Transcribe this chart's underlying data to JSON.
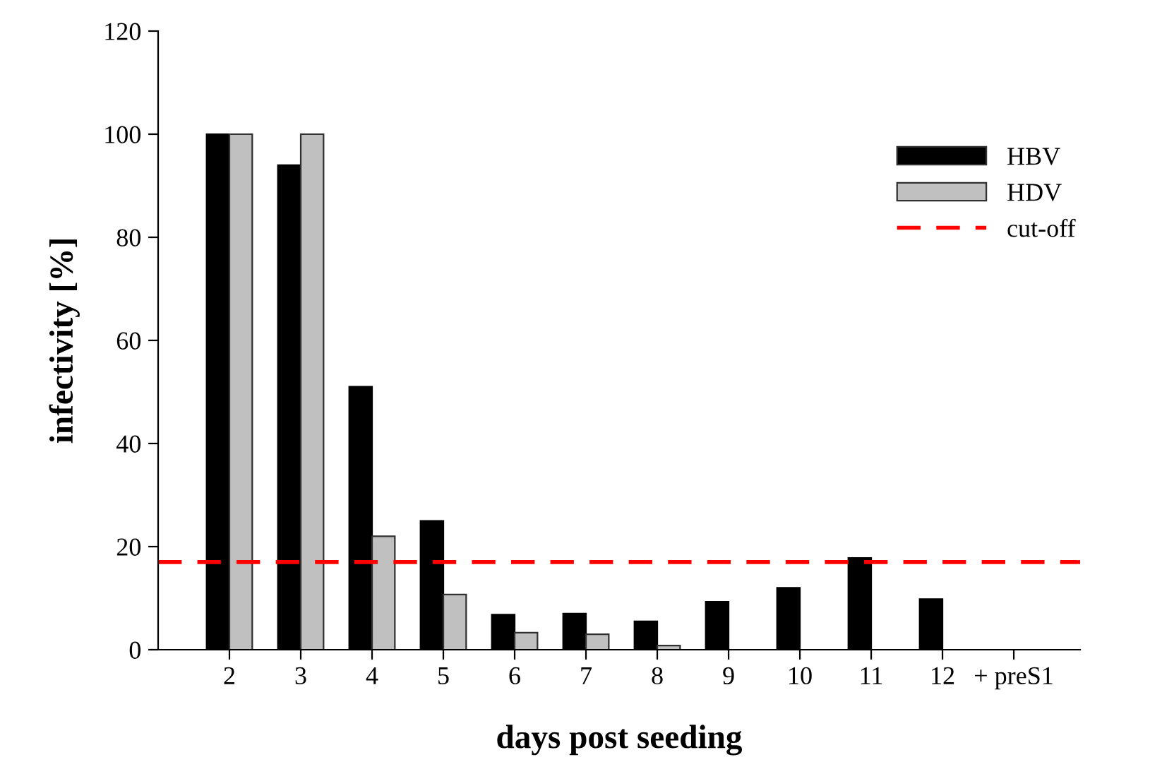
{
  "chart_data": {
    "type": "bar",
    "xlabel": "days post seeding",
    "ylabel": "infectivity [%]",
    "categories": [
      "2",
      "3",
      "4",
      "5",
      "6",
      "7",
      "8",
      "9",
      "10",
      "11",
      "12",
      "+ preS1"
    ],
    "series": [
      {
        "name": "HBV",
        "color": "#000000",
        "values": [
          100,
          94,
          51,
          25,
          6.8,
          7,
          5.5,
          9.3,
          12,
          17.8,
          9.8,
          null
        ]
      },
      {
        "name": "HDV",
        "color": "#c0c0c0",
        "values": [
          100,
          100,
          22,
          10.7,
          3.3,
          3.0,
          0.8,
          null,
          null,
          null,
          null,
          null
        ]
      }
    ],
    "ylim": [
      0,
      120
    ],
    "yticks": [
      0,
      20,
      40,
      60,
      80,
      100,
      120
    ],
    "ref_lines": [
      {
        "axis": "y",
        "value": 17,
        "label": "cut-off",
        "color": "#ff0000",
        "line_style": "dashed"
      }
    ],
    "grid": false,
    "legend": "top right"
  }
}
